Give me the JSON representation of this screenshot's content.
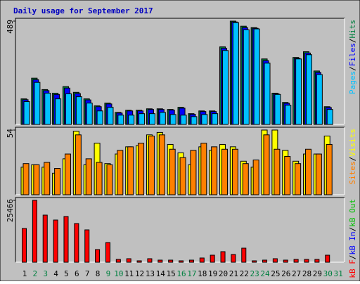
{
  "chart_data": [
    {
      "type": "bar",
      "title": "Daily usage for September 2017",
      "ylim": [
        0,
        489
      ],
      "yticks": [
        489
      ],
      "legend_separator": "/",
      "series": [
        {
          "name": "Hits",
          "color": "#008040",
          "values": [
            121,
            219,
            165,
            148,
            179,
            152,
            121,
            88,
            101,
            57,
            67,
            67,
            74,
            74,
            71,
            81,
            51,
            64,
            64,
            367,
            489,
            465,
            458,
            310,
            148,
            104,
            317,
            344,
            253,
            84,
            null
          ]
        },
        {
          "name": "Files",
          "color": "#0000ff",
          "values": [
            117,
            212,
            160,
            142,
            172,
            146,
            116,
            84,
            97,
            54,
            64,
            64,
            71,
            71,
            68,
            77,
            48,
            61,
            61,
            360,
            485,
            458,
            455,
            302,
            145,
            100,
            313,
            338,
            246,
            80,
            null
          ]
        },
        {
          "name": "Pages",
          "color": "#00c0ff",
          "values": [
            108,
            199,
            148,
            121,
            145,
            131,
            101,
            64,
            81,
            44,
            44,
            51,
            51,
            57,
            47,
            44,
            37,
            47,
            51,
            350,
            482,
            448,
            452,
            290,
            142,
            91,
            310,
            330,
            236,
            71,
            null
          ]
        }
      ]
    },
    {
      "type": "bar",
      "ylim": [
        0,
        54
      ],
      "yticks": [
        54
      ],
      "legend_separator": "/",
      "series": [
        {
          "name": "Visits",
          "color": "#ffff00",
          "values": [
            23,
            25,
            23,
            18,
            30,
            53,
            25,
            43,
            26,
            34,
            40,
            41,
            50,
            52,
            42,
            35,
            25,
            40,
            37,
            42,
            40,
            28,
            23,
            54,
            54,
            37,
            28,
            34,
            34,
            49,
            null
          ]
        },
        {
          "name": "Sites",
          "color": "#ff8000",
          "values": [
            26,
            25,
            27,
            22,
            34,
            50,
            30,
            27,
            25,
            37,
            40,
            43,
            49,
            50,
            38,
            31,
            37,
            43,
            40,
            38,
            38,
            26,
            29,
            50,
            38,
            32,
            26,
            38,
            34,
            42,
            null
          ]
        }
      ]
    },
    {
      "type": "bar",
      "ylim": [
        0,
        25466
      ],
      "yticks": [
        25466
      ],
      "legend_separator": "/",
      "categories": [
        "1",
        "2",
        "3",
        "4",
        "5",
        "6",
        "7",
        "8",
        "9",
        "10",
        "11",
        "12",
        "13",
        "14",
        "15",
        "16",
        "17",
        "18",
        "19",
        "20",
        "21",
        "22",
        "23",
        "24",
        "25",
        "26",
        "27",
        "28",
        "29",
        "30",
        "31"
      ],
      "label_colors": [
        "#000000",
        "#008040",
        "#008040",
        "#000000",
        "#000000",
        "#000000",
        "#000000",
        "#000000",
        "#008040",
        "#008040",
        "#000000",
        "#000000",
        "#000000",
        "#000000",
        "#000000",
        "#008040",
        "#008040",
        "#000000",
        "#000000",
        "#000000",
        "#000000",
        "#000000",
        "#008040",
        "#008040",
        "#000000",
        "#000000",
        "#000000",
        "#000000",
        "#000000",
        "#008040",
        "#008040"
      ],
      "series": [
        {
          "name": "kB Out",
          "color": "#00c000",
          "values": [
            null,
            null,
            null,
            null,
            null,
            null,
            null,
            null,
            null,
            null,
            null,
            null,
            null,
            null,
            null,
            null,
            null,
            null,
            null,
            null,
            null,
            null,
            null,
            null,
            null,
            null,
            null,
            null,
            null,
            null,
            null
          ]
        },
        {
          "name": "kB In",
          "color": "#0000ff",
          "values": [
            null,
            null,
            null,
            null,
            null,
            null,
            null,
            null,
            null,
            null,
            null,
            null,
            null,
            null,
            null,
            null,
            null,
            null,
            null,
            null,
            null,
            null,
            null,
            null,
            null,
            null,
            null,
            null,
            null,
            null,
            null
          ]
        },
        {
          "name": "kB F",
          "color": "#ff0000",
          "values": [
            13891,
            25466,
            19390,
            17364,
            18811,
            15917,
            13312,
            5209,
            8103,
            1158,
            1447,
            579,
            1447,
            868,
            868,
            579,
            868,
            1736,
            2894,
            4341,
            3183,
            5788,
            579,
            868,
            1447,
            868,
            1158,
            1158,
            1158,
            2894,
            null
          ]
        }
      ]
    }
  ]
}
